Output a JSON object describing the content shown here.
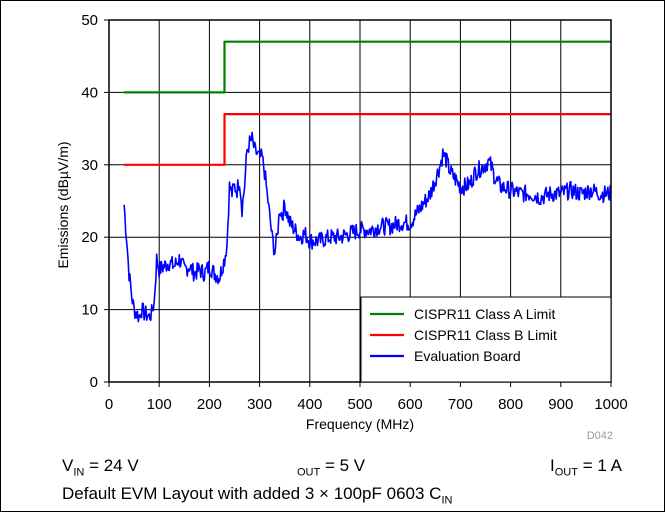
{
  "chart_data": {
    "type": "line",
    "xlabel": "Frequency (MHz)",
    "ylabel": "Emissions (dBµV/m)",
    "xlim": [
      0,
      1000
    ],
    "ylim": [
      0,
      50
    ],
    "xticks": [
      "0",
      "100",
      "200",
      "300",
      "400",
      "500",
      "600",
      "700",
      "800",
      "900",
      "1000"
    ],
    "yticks": [
      "0",
      "10",
      "20",
      "30",
      "40",
      "50"
    ],
    "grid": true,
    "legend_position": "bottom-right",
    "series": [
      {
        "name": "CISPR11 Class A Limit",
        "color": "#008000",
        "x": [
          30,
          230,
          230,
          1000
        ],
        "y": [
          40,
          40,
          47,
          47
        ]
      },
      {
        "name": "CISPR11 Class B Limit",
        "color": "#ff0000",
        "x": [
          30,
          230,
          230,
          1000
        ],
        "y": [
          30,
          30,
          37,
          37
        ]
      },
      {
        "name": "Evaluation Board",
        "color": "#0000ff",
        "x": [
          30,
          35,
          40,
          45,
          50,
          55,
          60,
          65,
          70,
          75,
          80,
          85,
          90,
          95,
          100,
          110,
          120,
          130,
          140,
          150,
          160,
          170,
          180,
          190,
          200,
          210,
          220,
          230,
          235,
          240,
          245,
          250,
          255,
          260,
          265,
          270,
          275,
          280,
          285,
          290,
          295,
          300,
          305,
          310,
          315,
          320,
          325,
          330,
          335,
          340,
          345,
          350,
          360,
          370,
          380,
          390,
          400,
          420,
          440,
          460,
          480,
          500,
          520,
          540,
          560,
          580,
          600,
          610,
          620,
          630,
          640,
          650,
          660,
          665,
          670,
          680,
          690,
          700,
          710,
          720,
          730,
          740,
          750,
          755,
          760,
          770,
          780,
          800,
          820,
          840,
          860,
          880,
          900,
          920,
          940,
          960,
          980,
          1000
        ],
        "y": [
          24.5,
          20,
          15,
          12,
          10,
          9.5,
          9,
          10,
          9.5,
          9.3,
          9,
          9.5,
          11,
          17,
          15.5,
          16,
          16.5,
          16,
          17,
          15.5,
          16,
          15,
          15.5,
          15,
          16,
          15,
          14.5,
          17,
          19,
          27,
          26,
          27,
          26.5,
          28,
          24,
          27,
          32,
          33,
          33.5,
          32,
          31.5,
          31,
          31,
          29,
          26,
          23,
          20,
          18,
          20,
          24,
          23,
          24.5,
          22,
          21,
          20,
          20.5,
          19.5,
          19.5,
          20,
          20,
          20.5,
          21,
          21,
          21.5,
          21.5,
          22,
          22,
          23,
          24,
          25,
          26,
          28,
          30,
          31.5,
          31,
          29,
          28,
          27,
          27,
          27.5,
          29,
          29.5,
          30,
          30.5,
          30,
          28,
          27,
          26.5,
          26,
          26,
          25.5,
          26,
          26,
          26.5,
          26,
          26.5,
          26,
          26
        ]
      }
    ]
  },
  "conditions": {
    "vin_main": "V",
    "vin_sub": "IN",
    "vin_value": " = 24 V",
    "vout_sub": "OUT",
    "vout_value": " = 5 V",
    "iout_main": "I",
    "iout_sub": "OUT",
    "iout_value": " = 1 A",
    "layout_note": "Default EVM Layout with added 3 × 100pF 0603 C",
    "layout_note_sub": "IN"
  },
  "figure_code": "D042"
}
